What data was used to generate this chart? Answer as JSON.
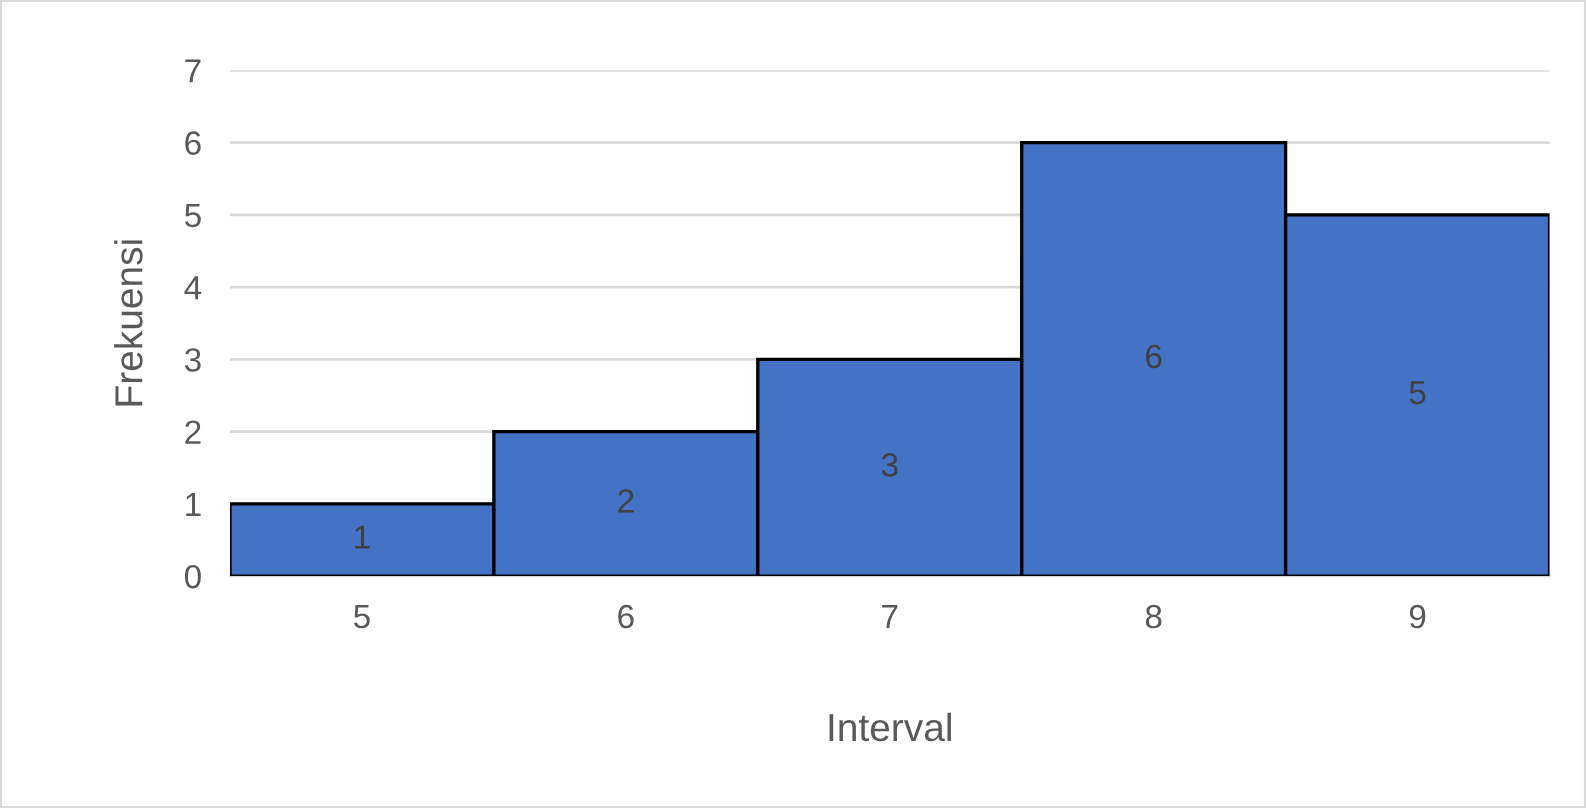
{
  "chart_data": {
    "type": "bar",
    "xlabel": "Interval",
    "ylabel": "Frekuensi",
    "categories": [
      "5",
      "6",
      "7",
      "8",
      "9"
    ],
    "values": [
      1,
      2,
      3,
      6,
      5
    ],
    "color": "#4472c4",
    "ylim": [
      0,
      7
    ],
    "yticks": [
      0,
      1,
      2,
      3,
      4,
      5,
      6,
      7
    ],
    "grid": "y",
    "data_labels": true
  }
}
